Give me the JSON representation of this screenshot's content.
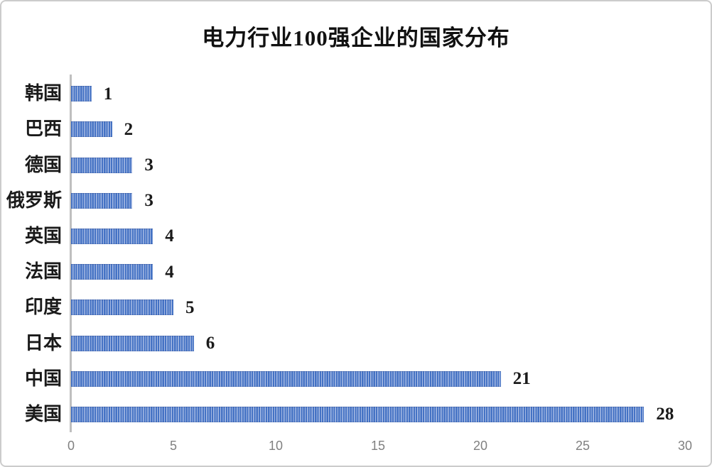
{
  "chart_data": {
    "type": "bar",
    "orientation": "horizontal",
    "title": "电力行业100强企业的国家分布",
    "categories": [
      "韩国",
      "巴西",
      "德国",
      "俄罗斯",
      "英国",
      "法国",
      "印度",
      "日本",
      "中国",
      "美国"
    ],
    "values": [
      1,
      2,
      3,
      3,
      4,
      4,
      5,
      6,
      21,
      28
    ],
    "value_labels": [
      "1",
      "2",
      "3",
      "3",
      "4",
      "4",
      "5",
      "6",
      "21",
      "28"
    ],
    "xlabel": "",
    "ylabel": "",
    "xlim": [
      0,
      30
    ],
    "x_ticks": [
      "0",
      "5",
      "10",
      "15",
      "20",
      "25",
      "30"
    ],
    "grid": false,
    "legend": false,
    "colors": {
      "bar_primary": "#4472c4",
      "bar_stripe": "#a9bce4",
      "axis_line": "#bfbfbf",
      "tick_label": "#808080",
      "data_label": "#1a1a1a",
      "category_label": "#1a1a1a",
      "background": "#ffffff",
      "frame_border": "#cccccc"
    }
  }
}
